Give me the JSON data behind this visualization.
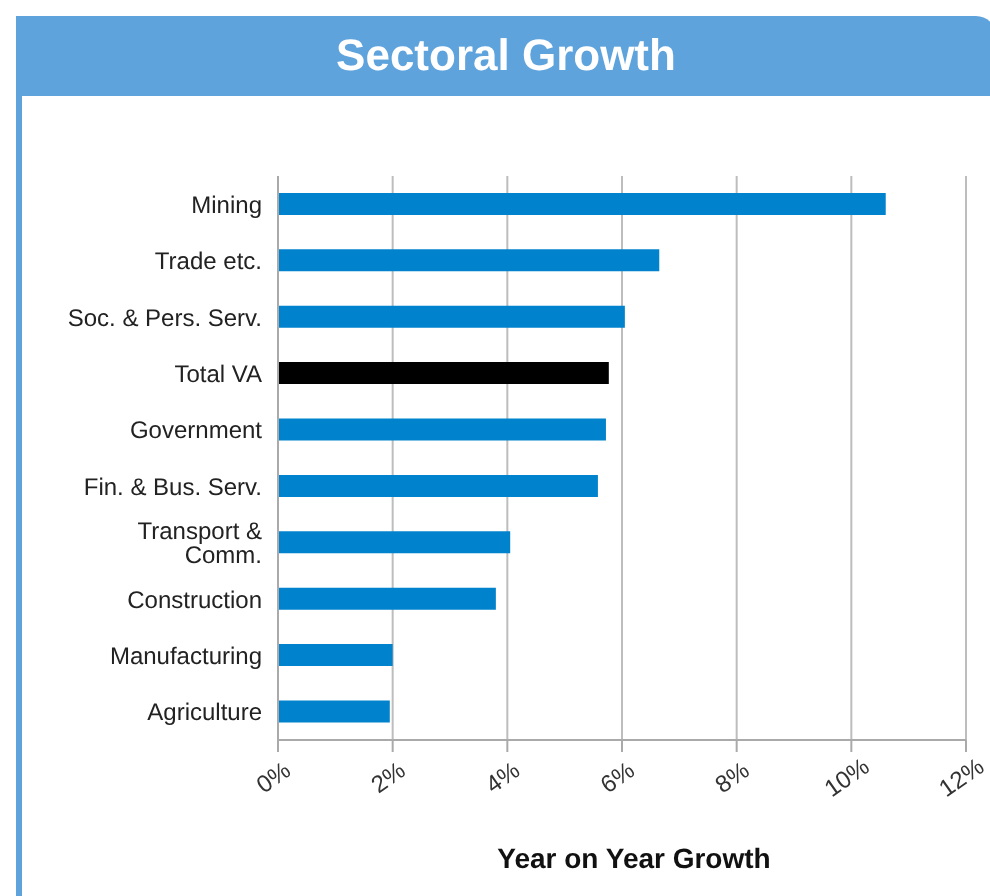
{
  "chart_data": {
    "type": "bar",
    "orientation": "horizontal",
    "title": "Sectoral Growth",
    "xlabel": "Year on Year Growth",
    "categories": [
      "Mining",
      "Trade etc.",
      "Soc. & Pers. Serv.",
      "Total VA",
      "Government",
      "Fin. & Bus. Serv.",
      "Transport & Comm.",
      "Construction",
      "Manufacturing",
      "Agriculture"
    ],
    "values": [
      10.6,
      6.65,
      6.05,
      5.77,
      5.72,
      5.58,
      4.05,
      3.8,
      2.0,
      1.95
    ],
    "colors": [
      "#0083cc",
      "#0083cc",
      "#0083cc",
      "#000000",
      "#0083cc",
      "#0083cc",
      "#0083cc",
      "#0083cc",
      "#0083cc",
      "#0083cc"
    ],
    "xlim": [
      0,
      12
    ],
    "xticks": [
      {
        "value": 0,
        "label": "0%"
      },
      {
        "value": 2,
        "label": "2%"
      },
      {
        "value": 4,
        "label": "4%"
      },
      {
        "value": 6,
        "label": "6%"
      },
      {
        "value": 8,
        "label": "8%"
      },
      {
        "value": 10,
        "label": "10%"
      },
      {
        "value": 12,
        "label": "12%"
      }
    ],
    "grid": "x",
    "legend": false
  }
}
